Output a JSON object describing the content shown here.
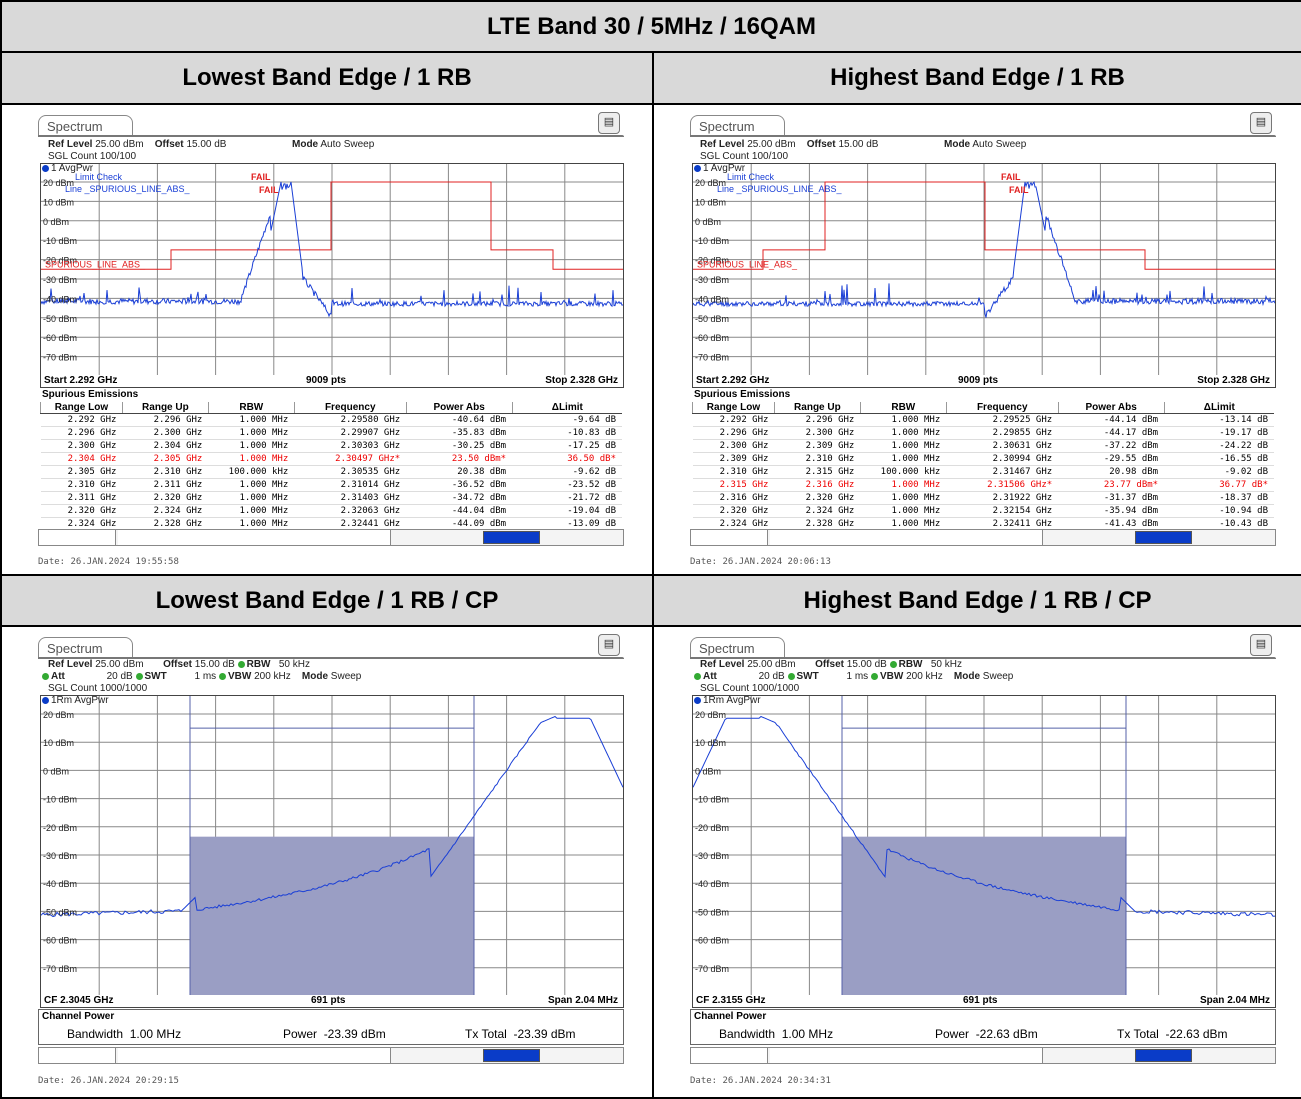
{
  "title": "LTE Band 30 / 5MHz / 16QAM",
  "panels": {
    "tl": {
      "caption": "Lowest Band Edge / 1 RB",
      "tab": "Spectrum",
      "ref_level_label": "Ref Level",
      "ref_level": "25.00 dBm",
      "offset_label": "Offset",
      "offset": "15.00 dB",
      "mode_label": "Mode",
      "mode": "Auto Sweep",
      "count": "SGL Count 100/100",
      "trace": "1 AvgPwr",
      "y_ticks": [
        "20 dBm",
        "10 dBm",
        "0 dBm",
        "-10 dBm",
        "-20 dBm",
        "-30 dBm",
        "-40 dBm",
        "-50 dBm",
        "-60 dBm",
        "-70 dBm"
      ],
      "limit_check": "Limit Check",
      "limit_line": "Line _SPURIOUS_LINE_ABS_",
      "fail1": "FAIL",
      "fail2": "FAIL",
      "limit_name": "SPURIOUS_LINE_ABS_",
      "start": "Start 2.292 GHz",
      "pts": "9009 pts",
      "stop": "Stop 2.328 GHz",
      "spur_title": "Spurious Emissions",
      "headers": [
        "Range Low",
        "Range Up",
        "RBW",
        "Frequency",
        "Power Abs",
        "ΔLimit"
      ],
      "rows": [
        [
          "2.292 GHz",
          "2.296 GHz",
          "1.000 MHz",
          "2.29580 GHz",
          "-40.64 dBm",
          "-9.64 dB"
        ],
        [
          "2.296 GHz",
          "2.300 GHz",
          "1.000 MHz",
          "2.29907 GHz",
          "-35.83 dBm",
          "-10.83 dB"
        ],
        [
          "2.300 GHz",
          "2.304 GHz",
          "1.000 MHz",
          "2.30303 GHz",
          "-30.25 dBm",
          "-17.25 dB"
        ],
        [
          "2.304 GHz",
          "2.305 GHz",
          "1.000 MHz",
          "2.30497 GHz*",
          "23.50 dBm*",
          "36.50 dB*"
        ],
        [
          "2.305 GHz",
          "2.310 GHz",
          "100.000 kHz",
          "2.30535 GHz",
          "20.38 dBm",
          "-9.62 dB"
        ],
        [
          "2.310 GHz",
          "2.311 GHz",
          "1.000 MHz",
          "2.31014 GHz",
          "-36.52 dBm",
          "-23.52 dB"
        ],
        [
          "2.311 GHz",
          "2.320 GHz",
          "1.000 MHz",
          "2.31403 GHz",
          "-34.72 dBm",
          "-21.72 dB"
        ],
        [
          "2.320 GHz",
          "2.324 GHz",
          "1.000 MHz",
          "2.32063 GHz",
          "-44.04 dBm",
          "-19.04 dB"
        ],
        [
          "2.324 GHz",
          "2.328 GHz",
          "1.000 MHz",
          "2.32441 GHz",
          "-44.09 dBm",
          "-13.09 dB"
        ]
      ],
      "fail_row": 3,
      "date": "Date: 26.JAN.2024  19:55:58"
    },
    "tr": {
      "caption": "Highest Band Edge / 1 RB",
      "tab": "Spectrum",
      "ref_level_label": "Ref Level",
      "ref_level": "25.00 dBm",
      "offset_label": "Offset",
      "offset": "15.00 dB",
      "mode_label": "Mode",
      "mode": "Auto Sweep",
      "count": "SGL Count 100/100",
      "trace": "1 AvgPwr",
      "y_ticks": [
        "20 dBm",
        "10 dBm",
        "0 dBm",
        "-10 dBm",
        "-20 dBm",
        "-30 dBm",
        "-40 dBm",
        "-50 dBm",
        "-60 dBm",
        "-70 dBm"
      ],
      "limit_check": "Limit Check",
      "limit_line": "Line _SPURIOUS_LINE_ABS_",
      "fail1": "FAIL",
      "fail2": "FAIL",
      "limit_name": "SPURIOUS_LINE_ABS_",
      "start": "Start 2.292 GHz",
      "pts": "9009 pts",
      "stop": "Stop 2.328 GHz",
      "spur_title": "Spurious Emissions",
      "headers": [
        "Range Low",
        "Range Up",
        "RBW",
        "Frequency",
        "Power Abs",
        "ΔLimit"
      ],
      "rows": [
        [
          "2.292 GHz",
          "2.296 GHz",
          "1.000 MHz",
          "2.29525 GHz",
          "-44.14 dBm",
          "-13.14 dB"
        ],
        [
          "2.296 GHz",
          "2.300 GHz",
          "1.000 MHz",
          "2.29855 GHz",
          "-44.17 dBm",
          "-19.17 dB"
        ],
        [
          "2.300 GHz",
          "2.309 GHz",
          "1.000 MHz",
          "2.30631 GHz",
          "-37.22 dBm",
          "-24.22 dB"
        ],
        [
          "2.309 GHz",
          "2.310 GHz",
          "1.000 MHz",
          "2.30994 GHz",
          "-29.55 dBm",
          "-16.55 dB"
        ],
        [
          "2.310 GHz",
          "2.315 GHz",
          "100.000 kHz",
          "2.31467 GHz",
          "20.98 dBm",
          "-9.02 dB"
        ],
        [
          "2.315 GHz",
          "2.316 GHz",
          "1.000 MHz",
          "2.31506 GHz*",
          "23.77 dBm*",
          "36.77 dB*"
        ],
        [
          "2.316 GHz",
          "2.320 GHz",
          "1.000 MHz",
          "2.31922 GHz",
          "-31.37 dBm",
          "-18.37 dB"
        ],
        [
          "2.320 GHz",
          "2.324 GHz",
          "1.000 MHz",
          "2.32154 GHz",
          "-35.94 dBm",
          "-10.94 dB"
        ],
        [
          "2.324 GHz",
          "2.328 GHz",
          "1.000 MHz",
          "2.32411 GHz",
          "-41.43 dBm",
          "-10.43 dB"
        ]
      ],
      "fail_row": 5,
      "date": "Date: 26.JAN.2024  20:06:13"
    },
    "bl": {
      "caption": "Lowest Band Edge / 1 RB / CP",
      "tab": "Spectrum",
      "ref_level_label": "Ref Level",
      "ref_level": "25.00 dBm",
      "offset_label": "Offset",
      "offset": "15.00 dB",
      "rbw_label": "RBW",
      "rbw": "50 kHz",
      "att_label": "Att",
      "att": "20 dB",
      "swt_label": "SWT",
      "swt": "1 ms",
      "vbw_label": "VBW",
      "vbw": "200 kHz",
      "mode_label": "Mode",
      "mode": "Sweep",
      "count": "SGL Count 1000/1000",
      "trace": "1Rm AvgPwr",
      "y_ticks": [
        "20 dBm",
        "10 dBm",
        "0 dBm",
        "-10 dBm",
        "-20 dBm",
        "-30 dBm",
        "-40 dBm",
        "-50 dBm",
        "-60 dBm",
        "-70 dBm"
      ],
      "cf": "CF 2.3045 GHz",
      "pts": "691 pts",
      "span": "Span 2.04 MHz",
      "cp_title": "Channel Power",
      "bw_label": "Bandwidth",
      "bw": "1.00 MHz",
      "power_label": "Power",
      "power": "-23.39 dBm",
      "tx_label": "Tx Total",
      "tx": "-23.39 dBm",
      "date": "Date: 26.JAN.2024  20:29:15"
    },
    "br": {
      "caption": "Highest Band Edge / 1 RB / CP",
      "tab": "Spectrum",
      "ref_level_label": "Ref Level",
      "ref_level": "25.00 dBm",
      "offset_label": "Offset",
      "offset": "15.00 dB",
      "rbw_label": "RBW",
      "rbw": "50 kHz",
      "att_label": "Att",
      "att": "20 dB",
      "swt_label": "SWT",
      "swt": "1 ms",
      "vbw_label": "VBW",
      "vbw": "200 kHz",
      "mode_label": "Mode",
      "mode": "Sweep",
      "count": "SGL Count 1000/1000",
      "trace": "1Rm AvgPwr",
      "y_ticks": [
        "20 dBm",
        "10 dBm",
        "0 dBm",
        "-10 dBm",
        "-20 dBm",
        "-30 dBm",
        "-40 dBm",
        "-50 dBm",
        "-60 dBm",
        "-70 dBm"
      ],
      "cf": "CF 2.3155 GHz",
      "pts": "691 pts",
      "span": "Span 2.04 MHz",
      "cp_title": "Channel Power",
      "bw_label": "Bandwidth",
      "bw": "1.00 MHz",
      "power_label": "Power",
      "power": "-22.63 dBm",
      "tx_label": "Tx Total",
      "tx": "-22.63 dBm",
      "date": "Date: 26.JAN.2024  20:34:31"
    }
  },
  "colors": {
    "trace": "#1a3fd6",
    "limit": "#e02020",
    "grid": "#888888",
    "channel_fill": "#9a9ec4"
  }
}
